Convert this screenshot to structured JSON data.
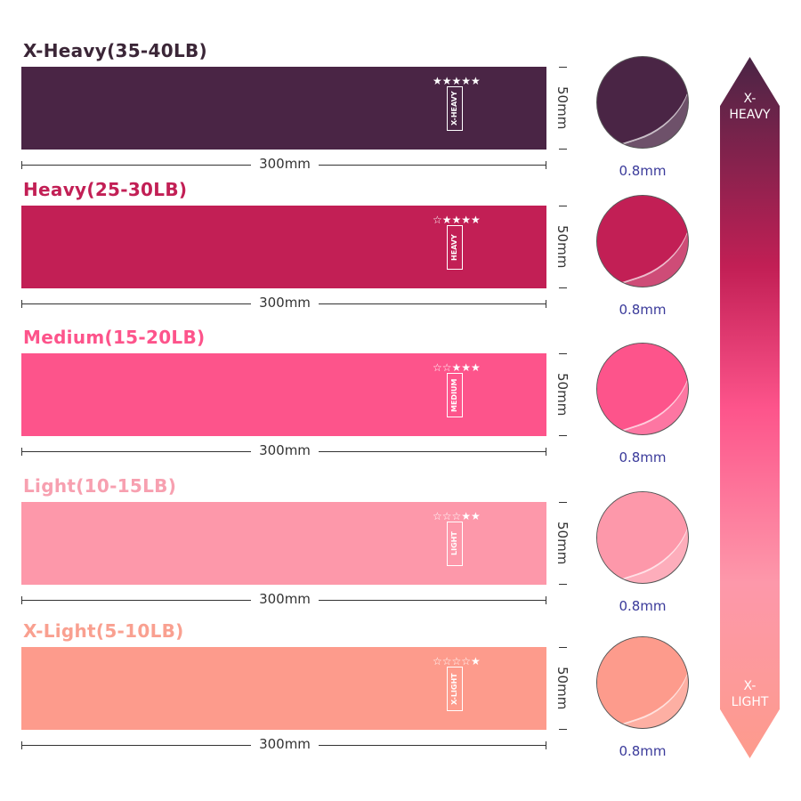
{
  "bands": [
    {
      "title": "X-Heavy(35-40LB)",
      "title_color": "#3b2637",
      "color": "#4a2545",
      "tag": "X-HEAVY",
      "stars": "★★★★★",
      "width": "300mm",
      "height": "50mm",
      "thickness": "0.8mm"
    },
    {
      "title": "Heavy(25-30LB)",
      "title_color": "#c21f55",
      "color": "#c21f55",
      "tag": "HEAVY",
      "stars": "☆★★★★",
      "width": "300mm",
      "height": "50mm",
      "thickness": "0.8mm"
    },
    {
      "title": "Medium(15-20LB)",
      "title_color": "#fd548b",
      "color": "#fd548b",
      "tag": "MEDIUM",
      "stars": "☆☆★★★",
      "width": "300mm",
      "height": "50mm",
      "thickness": "0.8mm"
    },
    {
      "title": "Light(10-15LB)",
      "title_color": "#f7a0b0",
      "color": "#fd98aa",
      "tag": "LIGHT",
      "stars": "☆☆☆★★",
      "width": "300mm",
      "height": "50mm",
      "thickness": "0.8mm"
    },
    {
      "title": "X-Light(5-10LB)",
      "title_color": "#f9a090",
      "color": "#fd9b8c",
      "tag": "X-LIGHT",
      "stars": "☆☆☆☆★",
      "width": "300mm",
      "height": "50mm",
      "thickness": "0.8mm"
    }
  ],
  "scale": {
    "top_label": "X-\nHEAVY",
    "bottom_label": "X-\nLIGHT"
  }
}
